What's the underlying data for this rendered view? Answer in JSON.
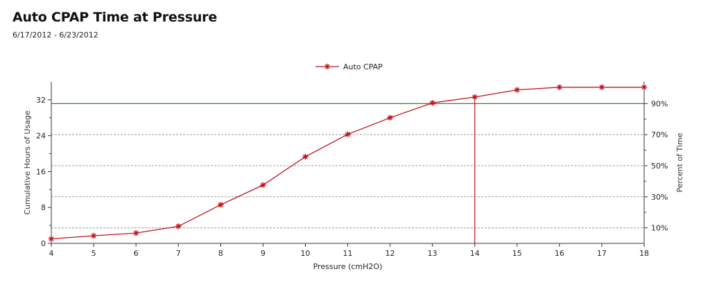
{
  "header": {
    "title": "Auto CPAP Time at Pressure",
    "date_range": "6/17/2012 - 6/23/2012"
  },
  "colors": {
    "series": "#c0101c",
    "threshold_line": "#3a7a3a",
    "grid": "#999999",
    "axis": "#333333"
  },
  "chart_data": {
    "type": "line",
    "legend": {
      "position": "top-center",
      "entries": [
        "Auto CPAP"
      ]
    },
    "xlabel": "Pressure (cmH2O)",
    "ylabel": "Cumulative Hours of Usage",
    "y2label": "Percent of Time",
    "xlim": [
      4,
      18
    ],
    "ylim": [
      0,
      36
    ],
    "y2lim": [
      0,
      104
    ],
    "x_ticks": [
      4,
      5,
      6,
      7,
      8,
      9,
      10,
      11,
      12,
      13,
      14,
      15,
      16,
      17,
      18
    ],
    "y_ticks": [
      0,
      8,
      16,
      24,
      32
    ],
    "y2_ticks": [
      "10%",
      "30%",
      "50%",
      "70%",
      "90%"
    ],
    "y2_tick_values": [
      10,
      30,
      50,
      70,
      90
    ],
    "series": [
      {
        "name": "Auto CPAP",
        "x": [
          4,
          5,
          6,
          7,
          8,
          9,
          10,
          11,
          12,
          13,
          14,
          15,
          16,
          17,
          18
        ],
        "y": [
          1.0,
          1.7,
          2.3,
          3.8,
          8.6,
          13.0,
          19.3,
          24.3,
          28.0,
          31.3,
          32.6,
          34.2,
          34.8,
          34.8,
          34.8
        ]
      }
    ],
    "reference_lines": [
      {
        "orientation": "horizontal",
        "axis": "y2",
        "value": 90
      },
      {
        "orientation": "vertical",
        "axis": "x",
        "value": 14
      }
    ],
    "grid": {
      "horizontal_dashed_at_y2": [
        10,
        30,
        50,
        70
      ]
    }
  }
}
